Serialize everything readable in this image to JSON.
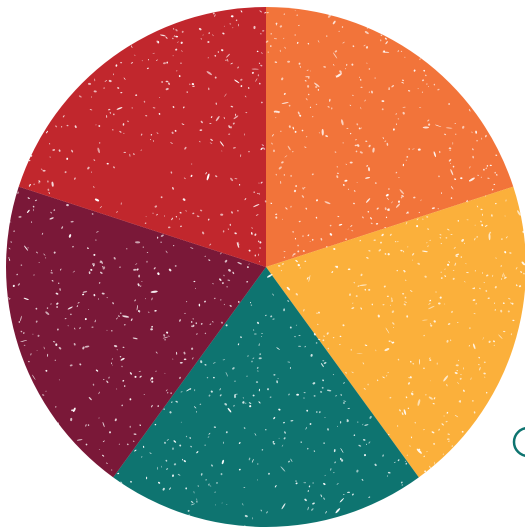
{
  "diagram": {
    "type": "pie",
    "texture": "distressed-white-speckle",
    "segments": [
      {
        "name": "segment-orange",
        "color": "#f2743a",
        "fraction": 0.2
      },
      {
        "name": "segment-yellow",
        "color": "#fbb03b",
        "fraction": 0.2
      },
      {
        "name": "segment-teal",
        "color": "#0e7470",
        "fraction": 0.2
      },
      {
        "name": "segment-maroon",
        "color": "#7a1838",
        "fraction": 0.2
      },
      {
        "name": "segment-red",
        "color": "#c1272d",
        "fraction": 0.2
      }
    ]
  }
}
